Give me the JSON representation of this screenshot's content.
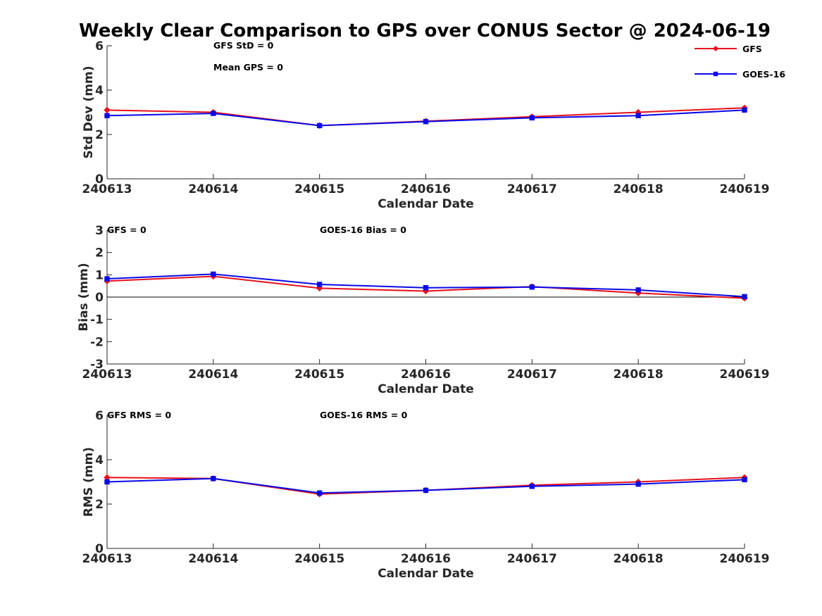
{
  "chart_data": {
    "title": "Weekly Clear Comparison to GPS over CONUS Sector @ 2024-06-19",
    "type": "line",
    "colors": {
      "GFS": "#e8101a",
      "GOES-16": "#0a0ae8"
    },
    "legend": {
      "position": "top-right",
      "entries": [
        {
          "name": "GFS",
          "color": "#e8101a",
          "marker": "diamond"
        },
        {
          "name": "GOES-16",
          "color": "#0a0ae8",
          "marker": "square"
        }
      ]
    },
    "panels": [
      {
        "id": "std",
        "xlabel": "Calendar Date",
        "ylabel": "Std Dev (mm)",
        "ylim": [
          0,
          6
        ],
        "yticks": [
          "0",
          "2",
          "4",
          "6"
        ],
        "ytick_values": [
          0,
          2,
          4,
          6
        ],
        "categories": [
          "240613",
          "240614",
          "240615",
          "240616",
          "240617",
          "240618",
          "240619"
        ],
        "zero_line": false,
        "annotations": [
          "GFS StD = 0",
          "Mean GPS = 0"
        ],
        "series": [
          {
            "name": "GFS",
            "values": [
              3.1,
              3.0,
              2.4,
              2.6,
              2.8,
              3.0,
              3.2
            ]
          },
          {
            "name": "GOES-16",
            "values": [
              2.85,
              2.95,
              2.4,
              2.58,
              2.75,
              2.85,
              3.1
            ]
          }
        ]
      },
      {
        "id": "bias",
        "xlabel": "Calendar Date",
        "ylabel": "Bias (mm)",
        "ylim": [
          -3,
          3
        ],
        "yticks": [
          "-3",
          "-2",
          "-1",
          "0",
          "1",
          "2",
          "3"
        ],
        "ytick_values": [
          -3,
          -2,
          -1,
          0,
          1,
          2,
          3
        ],
        "categories": [
          "240613",
          "240614",
          "240615",
          "240616",
          "240617",
          "240618",
          "240619"
        ],
        "zero_line": true,
        "annotations": [
          "GFS = 0",
          "GOES-16 Bias  = 0"
        ],
        "series": [
          {
            "name": "GFS",
            "values": [
              0.72,
              0.93,
              0.4,
              0.27,
              0.47,
              0.18,
              -0.05
            ]
          },
          {
            "name": "GOES-16",
            "values": [
              0.82,
              1.03,
              0.57,
              0.42,
              0.45,
              0.32,
              0.02
            ]
          }
        ]
      },
      {
        "id": "rms",
        "xlabel": "Calendar Date",
        "ylabel": "RMS (mm)",
        "ylim": [
          0,
          6
        ],
        "yticks": [
          "0",
          "2",
          "4",
          "6"
        ],
        "ytick_values": [
          0,
          2,
          4,
          6
        ],
        "categories": [
          "240613",
          "240614",
          "240615",
          "240616",
          "240617",
          "240618",
          "240619"
        ],
        "zero_line": false,
        "annotations": [
          "GFS RMS = 0",
          "GOES-16 RMS = 0"
        ],
        "series": [
          {
            "name": "GFS",
            "values": [
              3.2,
              3.15,
              2.45,
              2.62,
              2.85,
              3.0,
              3.2
            ]
          },
          {
            "name": "GOES-16",
            "values": [
              3.0,
              3.15,
              2.5,
              2.62,
              2.8,
              2.9,
              3.1
            ]
          }
        ]
      }
    ]
  }
}
